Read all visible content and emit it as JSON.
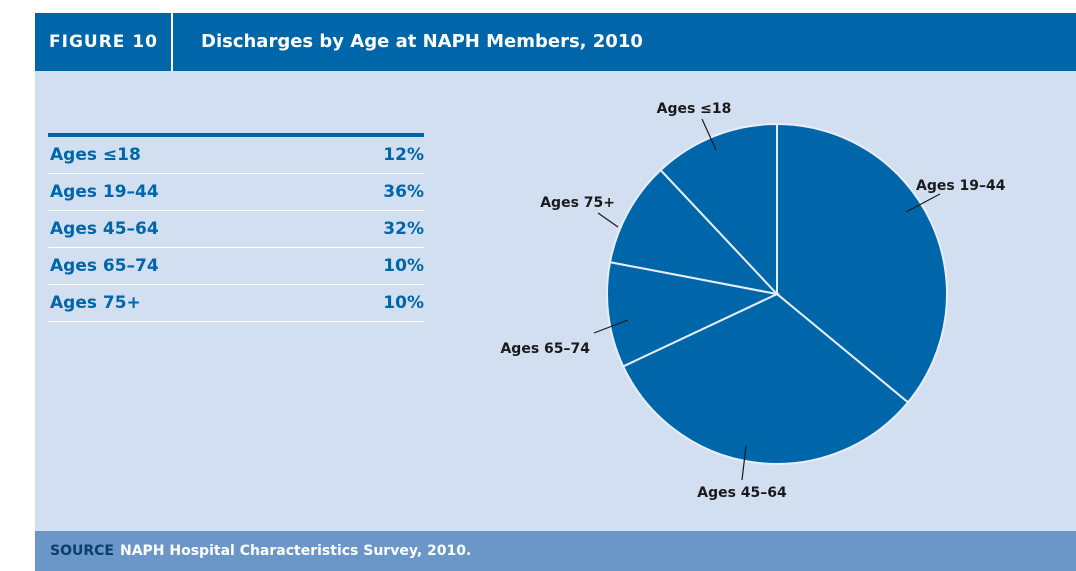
{
  "figure": {
    "number": "FIGURE 10",
    "title": "Discharges by Age at NAPH Members, 2010"
  },
  "table": [
    {
      "label": "Ages ≤18",
      "value": "12%"
    },
    {
      "label": "Ages 19–44",
      "value": "36%"
    },
    {
      "label": "Ages 45–64",
      "value": "32%"
    },
    {
      "label": "Ages 65–74",
      "value": "10%"
    },
    {
      "label": "Ages 75+",
      "value": "10%"
    }
  ],
  "source": {
    "label": "SOURCE",
    "text": "NAPH Hospital Characteristics Survey, 2010."
  },
  "chart_data": {
    "type": "pie",
    "categories": [
      "Ages ≤18",
      "Ages 19–44",
      "Ages 45–64",
      "Ages 65–74",
      "Ages 75+"
    ],
    "values": [
      12,
      36,
      32,
      10,
      10
    ],
    "slice_order_clockwise_from_top": [
      "Ages 19–44",
      "Ages 45–64",
      "Ages 65–74",
      "Ages 75+",
      "Ages ≤18"
    ],
    "colors": {
      "slice": "#0066aa",
      "separator": "#d2dff0",
      "header": "#0066aa",
      "panel": "#d2dff0",
      "footer": "#6b97c8"
    }
  }
}
